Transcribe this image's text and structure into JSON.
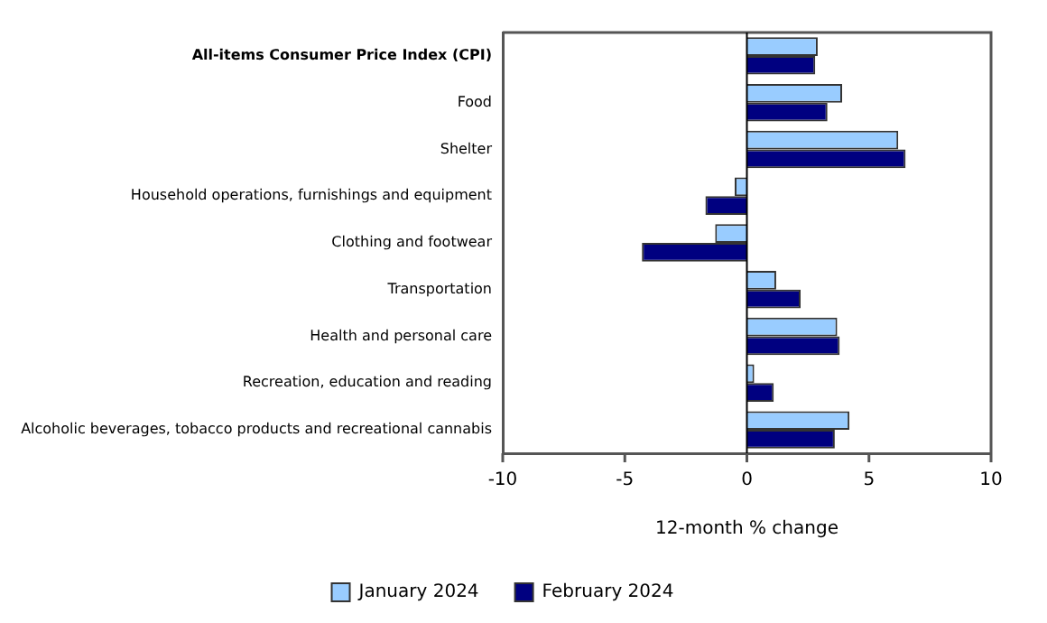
{
  "chart_data": {
    "type": "bar",
    "orientation": "horizontal",
    "xlabel": "12-month % change",
    "categories": [
      "All-items Consumer Price Index (CPI)",
      "Food",
      "Shelter",
      "Household operations, furnishings and equipment",
      "Clothing and footwear",
      "Transportation",
      "Health and personal care",
      "Recreation, education and reading",
      "Alcoholic beverages, tobacco products and recreational cannabis"
    ],
    "series": [
      {
        "name": "January 2024",
        "color": "#99ccff",
        "values": [
          2.9,
          3.9,
          6.2,
          -0.5,
          -1.3,
          1.2,
          3.7,
          0.3,
          4.2
        ]
      },
      {
        "name": "February 2024",
        "color": "#000080",
        "values": [
          2.8,
          3.3,
          6.5,
          -1.7,
          -4.3,
          2.2,
          3.8,
          1.1,
          3.6
        ]
      }
    ],
    "ref_lines": [
      {
        "axis": "x",
        "value": 0,
        "color": "#000000"
      }
    ],
    "xlim": [
      -10,
      10
    ],
    "xticks": [
      -10,
      -5,
      0,
      5,
      10
    ],
    "grid": false,
    "legend": "bottom"
  }
}
